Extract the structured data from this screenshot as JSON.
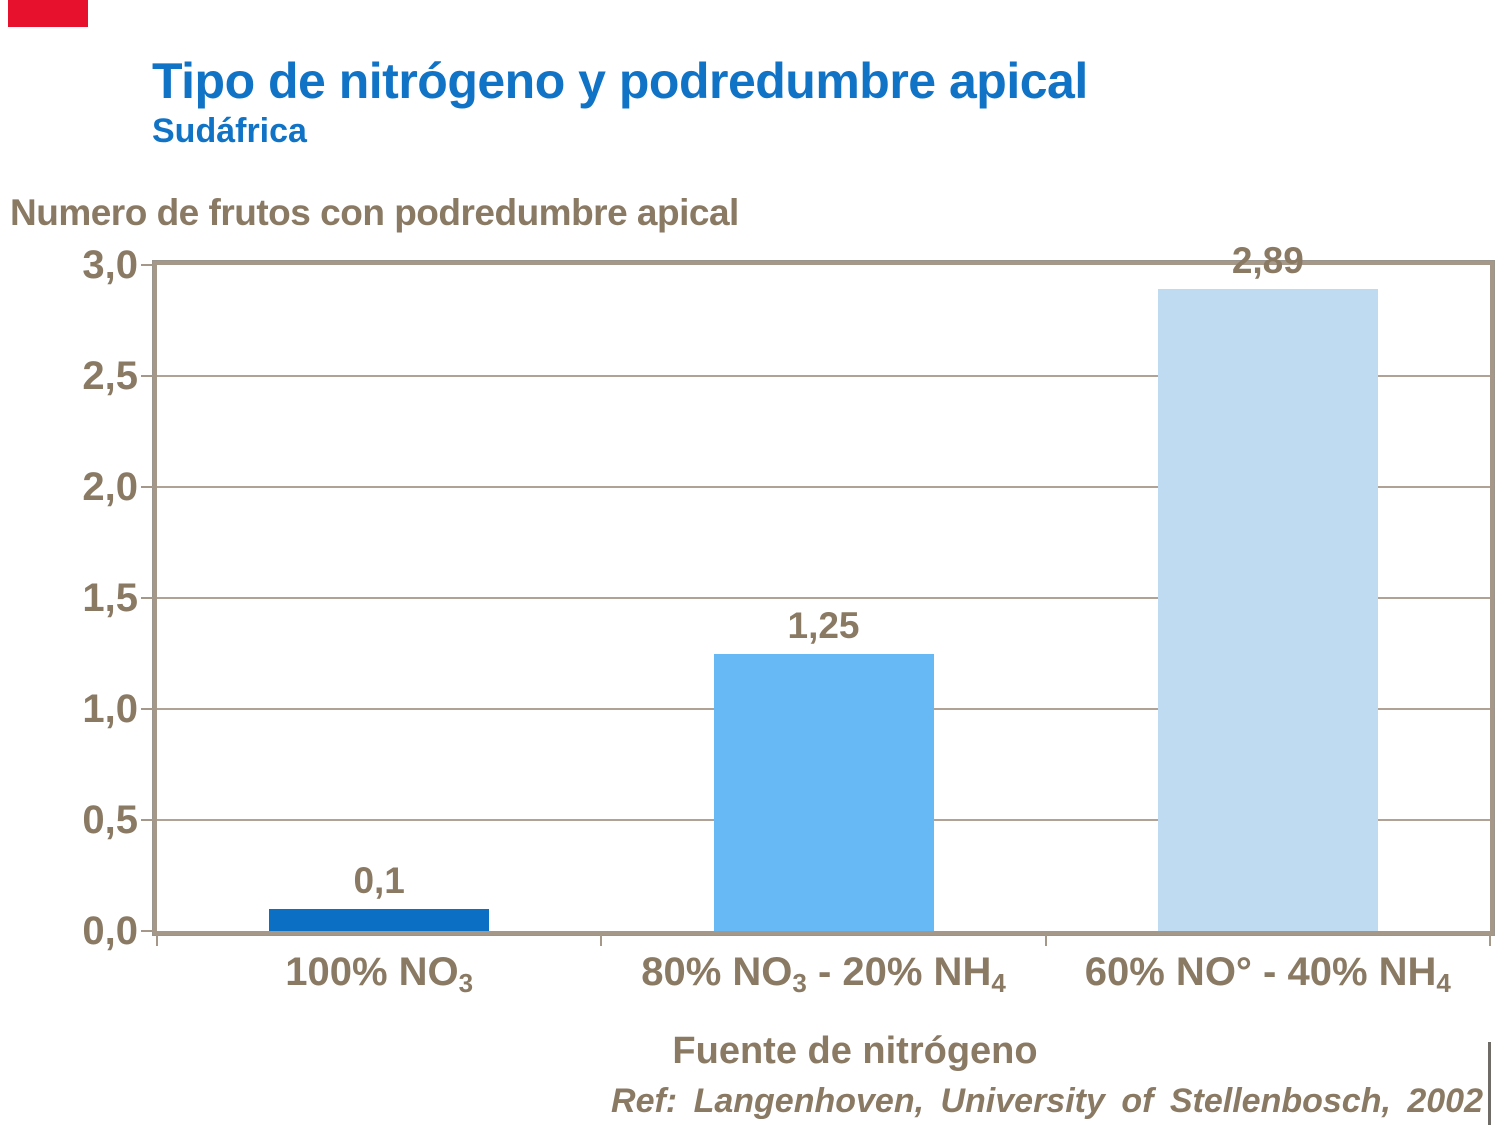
{
  "slide": {
    "title": "Tipo de nitrógeno y podredumbre apical",
    "subtitle": "Sudáfrica",
    "title_color": "#1173c6",
    "accent_flag_color": "#e8112d",
    "reference": "Ref: Langenhoven, University of Stellenbosch, 2002"
  },
  "chart_data": {
    "type": "bar",
    "title": "Numero de frutos con podredumbre apical",
    "xlabel": "Fuente de nitrógeno",
    "ylabel": "",
    "ylim": [
      0,
      3
    ],
    "grid": true,
    "legend": false,
    "y_ticks": [
      "3,0",
      "2,5",
      "2,0",
      "1,5",
      "1,0",
      "0,5",
      "0,0"
    ],
    "categories": [
      "100% NO3",
      "80% NO3 - 20% NH4",
      "60% NO° - 40% NH4"
    ],
    "categories_rich": [
      [
        {
          "text": "100% NO"
        },
        {
          "text": "3",
          "sub": true
        }
      ],
      [
        {
          "text": "80% NO"
        },
        {
          "text": "3",
          "sub": true
        },
        {
          "text": " - 20% NH"
        },
        {
          "text": "4",
          "sub": true
        }
      ],
      [
        {
          "text": "60% NO° - 40% NH"
        },
        {
          "text": "4",
          "sub": true
        }
      ]
    ],
    "values": [
      0.1,
      1.25,
      2.89
    ],
    "value_labels": [
      "0,1",
      "1,25",
      "2,89"
    ],
    "bar_colors": [
      "#0b6fc4",
      "#66b9f4",
      "#bfdbf2"
    ],
    "text_color": "#8a7a64",
    "frame_color": "#a59889",
    "gridline_color": "#b0a294"
  }
}
